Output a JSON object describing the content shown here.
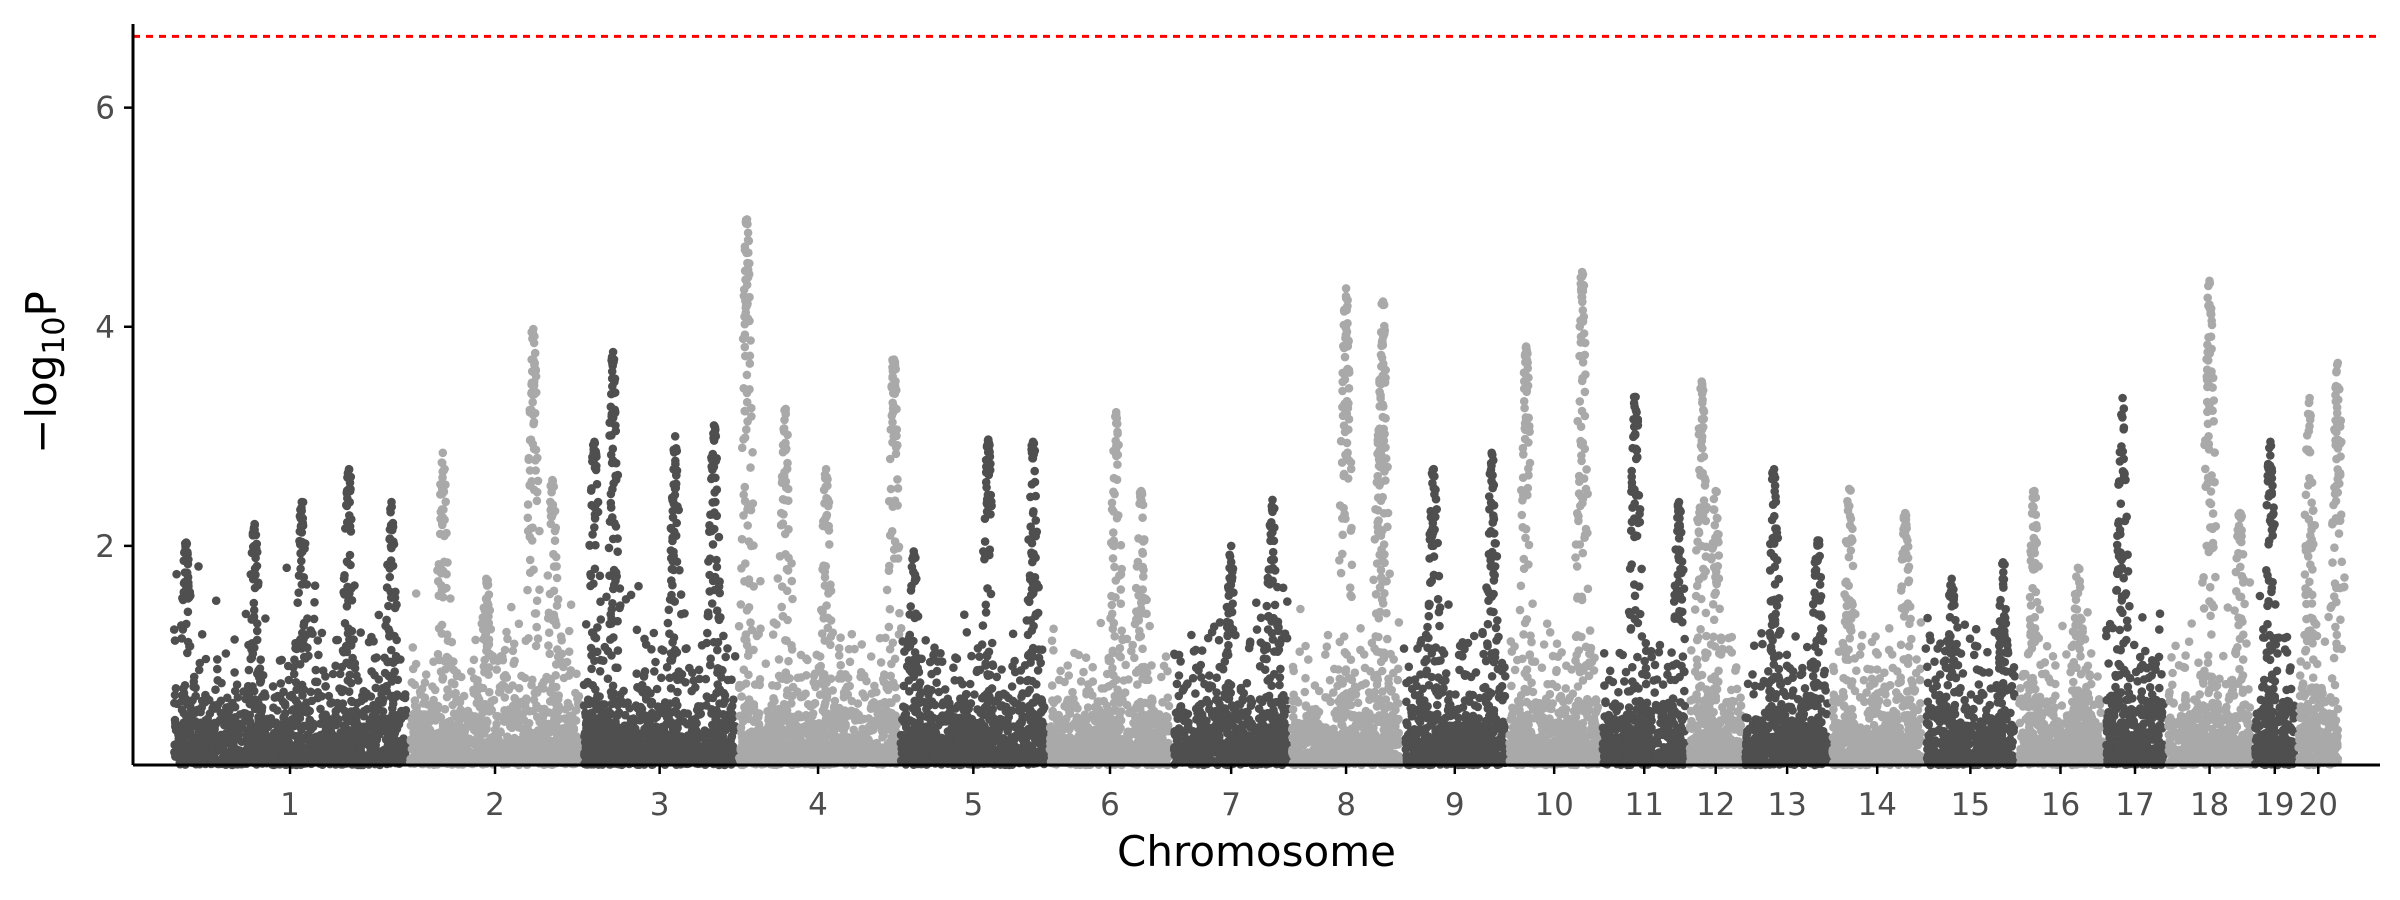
{
  "chart_data": {
    "type": "scatter",
    "subtype": "manhattan",
    "title": "",
    "xlabel": "Chromosome",
    "ylabel": {
      "prefix": "−log",
      "subscript": "10",
      "suffix": "P"
    },
    "ylim": [
      0,
      6.8
    ],
    "yticks": [
      2,
      4,
      6
    ],
    "threshold": {
      "value": 6.65,
      "color": "#ff0000",
      "style": "dashed"
    },
    "grid": false,
    "legend": "none",
    "colors": {
      "dark": "#4f4f4f",
      "light": "#a9a9a9",
      "axis": "#000000",
      "tick_text": "#4d4d4d"
    },
    "chromosomes": [
      {
        "label": "1",
        "size": 38,
        "color": "dark",
        "base_max": 2.4,
        "peaks": [
          [
            0.06,
            2.03
          ],
          [
            0.35,
            2.2
          ],
          [
            0.55,
            2.4
          ],
          [
            0.75,
            2.7
          ],
          [
            0.93,
            2.4
          ]
        ]
      },
      {
        "label": "2",
        "size": 28,
        "color": "light",
        "base_max": 1.9,
        "peaks": [
          [
            0.2,
            2.85
          ],
          [
            0.45,
            1.7
          ],
          [
            0.72,
            3.98
          ],
          [
            0.83,
            2.6
          ]
        ]
      },
      {
        "label": "3",
        "size": 25,
        "color": "dark",
        "base_max": 1.8,
        "peaks": [
          [
            0.08,
            2.95
          ],
          [
            0.2,
            3.77
          ],
          [
            0.6,
            3.0
          ],
          [
            0.85,
            3.1
          ]
        ]
      },
      {
        "label": "4",
        "size": 26,
        "color": "light",
        "base_max": 1.9,
        "peaks": [
          [
            0.06,
            4.98
          ],
          [
            0.3,
            3.25
          ],
          [
            0.55,
            2.7
          ],
          [
            0.97,
            3.7
          ]
        ]
      },
      {
        "label": "5",
        "size": 24,
        "color": "dark",
        "base_max": 1.5,
        "peaks": [
          [
            0.1,
            1.95
          ],
          [
            0.6,
            2.97
          ],
          [
            0.9,
            2.95
          ]
        ]
      },
      {
        "label": "6",
        "size": 20,
        "color": "light",
        "base_max": 2.0,
        "peaks": [
          [
            0.55,
            3.22
          ],
          [
            0.75,
            2.5
          ]
        ]
      },
      {
        "label": "7",
        "size": 19,
        "color": "dark",
        "base_max": 1.7,
        "peaks": [
          [
            0.5,
            2.0
          ],
          [
            0.85,
            2.42
          ]
        ]
      },
      {
        "label": "8",
        "size": 18,
        "color": "light",
        "base_max": 1.6,
        "peaks": [
          [
            0.5,
            4.35
          ],
          [
            0.83,
            4.23
          ],
          [
            0.8,
            3.07
          ]
        ]
      },
      {
        "label": "9",
        "size": 17,
        "color": "dark",
        "base_max": 1.6,
        "peaks": [
          [
            0.3,
            2.7
          ],
          [
            0.85,
            2.85
          ]
        ]
      },
      {
        "label": "10",
        "size": 15,
        "color": "light",
        "base_max": 1.7,
        "peaks": [
          [
            0.2,
            3.82
          ],
          [
            0.8,
            4.5
          ]
        ]
      },
      {
        "label": "11",
        "size": 14,
        "color": "dark",
        "base_max": 1.6,
        "peaks": [
          [
            0.4,
            3.36
          ],
          [
            0.9,
            2.4
          ]
        ]
      },
      {
        "label": "12",
        "size": 9,
        "color": "light",
        "base_max": 1.8,
        "peaks": [
          [
            0.25,
            3.5
          ],
          [
            0.5,
            2.5
          ]
        ]
      },
      {
        "label": "13",
        "size": 14,
        "color": "dark",
        "base_max": 1.6,
        "peaks": [
          [
            0.35,
            2.7
          ],
          [
            0.85,
            2.05
          ]
        ]
      },
      {
        "label": "14",
        "size": 15,
        "color": "light",
        "base_max": 1.6,
        "peaks": [
          [
            0.2,
            2.52
          ],
          [
            0.8,
            2.3
          ]
        ]
      },
      {
        "label": "15",
        "size": 15,
        "color": "dark",
        "base_max": 1.4,
        "peaks": [
          [
            0.3,
            1.7
          ],
          [
            0.85,
            1.85
          ]
        ]
      },
      {
        "label": "16",
        "size": 14,
        "color": "light",
        "base_max": 1.6,
        "peaks": [
          [
            0.2,
            2.5
          ],
          [
            0.7,
            1.8
          ]
        ]
      },
      {
        "label": "17",
        "size": 10,
        "color": "dark",
        "base_max": 1.8,
        "peaks": [
          [
            0.3,
            3.35
          ]
        ]
      },
      {
        "label": "18",
        "size": 14,
        "color": "light",
        "base_max": 1.9,
        "peaks": [
          [
            0.5,
            4.42
          ],
          [
            0.85,
            2.3
          ]
        ]
      },
      {
        "label": "19",
        "size": 7,
        "color": "dark",
        "base_max": 1.8,
        "peaks": [
          [
            0.4,
            2.95
          ]
        ]
      },
      {
        "label": "20",
        "size": 7,
        "color": "light",
        "base_max": 1.8,
        "peaks": [
          [
            0.3,
            3.35
          ],
          [
            0.95,
            3.67
          ]
        ]
      }
    ]
  }
}
